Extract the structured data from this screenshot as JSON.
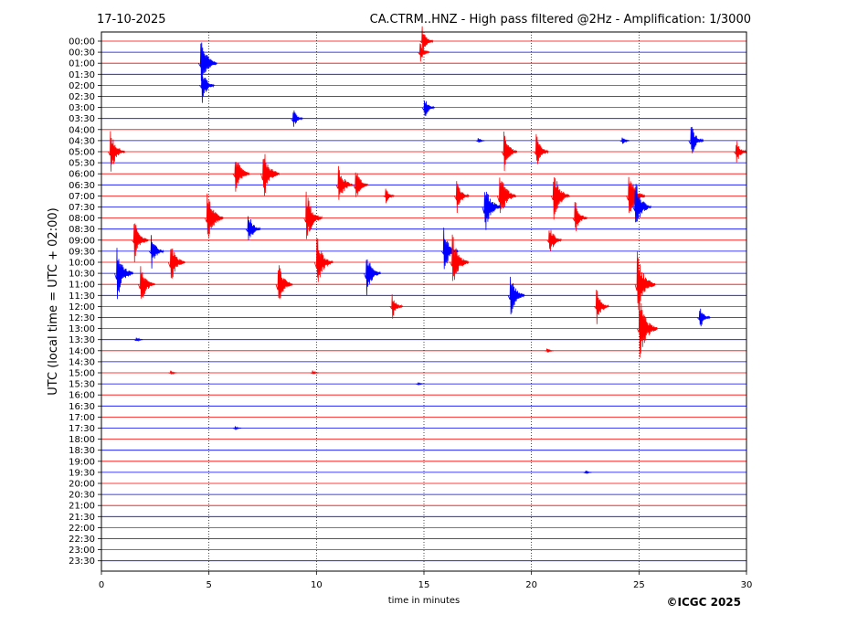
{
  "header": {
    "date": "17-10-2025",
    "title": "CA.CTRM..HNZ - High pass filtered @2Hz - Amplification: 1/3000"
  },
  "footer": {
    "copyright": "©ICGC 2025"
  },
  "chart_data": {
    "type": "line",
    "title": "CA.CTRM..HNZ - High pass filtered @2Hz - Amplification: 1/3000",
    "date": "17-10-2025",
    "xlabel": "time in minutes",
    "ylabel": "UTC (local time = UTC + 02:00)",
    "xlim": [
      0,
      30
    ],
    "x_ticks": [
      "0",
      "5",
      "10",
      "15",
      "20",
      "25",
      "30"
    ],
    "x_tick_values": [
      0,
      5,
      10,
      15,
      20,
      25,
      30
    ],
    "row_labels": [
      "00:00",
      "00:30",
      "01:00",
      "01:30",
      "02:00",
      "02:30",
      "03:00",
      "03:30",
      "04:00",
      "04:30",
      "05:00",
      "05:30",
      "06:00",
      "06:30",
      "07:00",
      "07:30",
      "08:00",
      "08:30",
      "09:00",
      "09:30",
      "10:00",
      "10:30",
      "11:00",
      "11:30",
      "12:00",
      "12:30",
      "13:00",
      "13:30",
      "14:00",
      "14:30",
      "15:00",
      "15:30",
      "16:00",
      "16:30",
      "17:00",
      "17:30",
      "18:00",
      "18:30",
      "19:00",
      "19:30",
      "20:00",
      "20:30",
      "21:00",
      "21:30",
      "22:00",
      "22:30",
      "23:00",
      "23:30"
    ],
    "trace_colors": [
      "#ff0000",
      "#0000ff"
    ],
    "vertical_grid": "dotted",
    "events": [
      {
        "row": 0,
        "t": 14.9,
        "amp": 1.6,
        "color": "#ff0000"
      },
      {
        "row": 1,
        "t": 14.8,
        "amp": 1.2,
        "color": "#ff0000"
      },
      {
        "row": 2,
        "t": 4.6,
        "amp": 3.0,
        "color": "#0000ff"
      },
      {
        "row": 4,
        "t": 4.65,
        "amp": 2.0,
        "color": "#0000ff"
      },
      {
        "row": 6,
        "t": 15.0,
        "amp": 1.4,
        "color": "#0000ff"
      },
      {
        "row": 7,
        "t": 8.9,
        "amp": 1.2,
        "color": "#0000ff"
      },
      {
        "row": 9,
        "t": 17.5,
        "amp": 0.4,
        "color": "#0000ff"
      },
      {
        "row": 9,
        "t": 24.2,
        "amp": 0.6,
        "color": "#0000ff"
      },
      {
        "row": 9,
        "t": 27.4,
        "amp": 2.0,
        "color": "#0000ff"
      },
      {
        "row": 10,
        "t": 0.4,
        "amp": 2.5,
        "color": "#ff0000"
      },
      {
        "row": 10,
        "t": 18.7,
        "amp": 2.2,
        "color": "#ff0000"
      },
      {
        "row": 10,
        "t": 20.2,
        "amp": 2.0,
        "color": "#ff0000"
      },
      {
        "row": 10,
        "t": 29.5,
        "amp": 1.5,
        "color": "#ff0000"
      },
      {
        "row": 12,
        "t": 6.2,
        "amp": 2.5,
        "color": "#ff0000"
      },
      {
        "row": 12,
        "t": 7.5,
        "amp": 3.0,
        "color": "#ff0000"
      },
      {
        "row": 13,
        "t": 11.0,
        "amp": 2.5,
        "color": "#ff0000"
      },
      {
        "row": 13,
        "t": 11.8,
        "amp": 2.0,
        "color": "#ff0000"
      },
      {
        "row": 14,
        "t": 13.2,
        "amp": 1.0,
        "color": "#ff0000"
      },
      {
        "row": 14,
        "t": 16.5,
        "amp": 2.0,
        "color": "#ff0000"
      },
      {
        "row": 14,
        "t": 18.5,
        "amp": 3.0,
        "color": "#ff0000"
      },
      {
        "row": 14,
        "t": 21.0,
        "amp": 3.0,
        "color": "#ff0000"
      },
      {
        "row": 14,
        "t": 24.5,
        "amp": 3.0,
        "color": "#ff0000"
      },
      {
        "row": 15,
        "t": 17.8,
        "amp": 3.0,
        "color": "#0000ff"
      },
      {
        "row": 15,
        "t": 24.8,
        "amp": 3.0,
        "color": "#0000ff"
      },
      {
        "row": 16,
        "t": 4.9,
        "amp": 3.0,
        "color": "#ff0000"
      },
      {
        "row": 16,
        "t": 9.5,
        "amp": 3.0,
        "color": "#ff0000"
      },
      {
        "row": 16,
        "t": 22.0,
        "amp": 2.0,
        "color": "#ff0000"
      },
      {
        "row": 17,
        "t": 6.8,
        "amp": 2.0,
        "color": "#0000ff"
      },
      {
        "row": 18,
        "t": 1.5,
        "amp": 2.5,
        "color": "#ff0000"
      },
      {
        "row": 18,
        "t": 20.8,
        "amp": 2.0,
        "color": "#ff0000"
      },
      {
        "row": 19,
        "t": 2.3,
        "amp": 2.0,
        "color": "#0000ff"
      },
      {
        "row": 19,
        "t": 15.9,
        "amp": 2.5,
        "color": "#0000ff"
      },
      {
        "row": 20,
        "t": 3.2,
        "amp": 2.5,
        "color": "#ff0000"
      },
      {
        "row": 20,
        "t": 10.0,
        "amp": 3.0,
        "color": "#ff0000"
      },
      {
        "row": 20,
        "t": 16.3,
        "amp": 3.0,
        "color": "#ff0000"
      },
      {
        "row": 21,
        "t": 0.7,
        "amp": 3.0,
        "color": "#0000ff"
      },
      {
        "row": 21,
        "t": 12.3,
        "amp": 2.5,
        "color": "#0000ff"
      },
      {
        "row": 22,
        "t": 1.8,
        "amp": 2.5,
        "color": "#ff0000"
      },
      {
        "row": 22,
        "t": 8.2,
        "amp": 2.5,
        "color": "#ff0000"
      },
      {
        "row": 22,
        "t": 24.9,
        "amp": 3.5,
        "color": "#ff0000"
      },
      {
        "row": 23,
        "t": 19.0,
        "amp": 2.5,
        "color": "#0000ff"
      },
      {
        "row": 24,
        "t": 13.5,
        "amp": 1.5,
        "color": "#ff0000"
      },
      {
        "row": 24,
        "t": 23.0,
        "amp": 2.0,
        "color": "#ff0000"
      },
      {
        "row": 25,
        "t": 27.8,
        "amp": 1.5,
        "color": "#0000ff"
      },
      {
        "row": 26,
        "t": 25.0,
        "amp": 3.5,
        "color": "#ff0000"
      },
      {
        "row": 27,
        "t": 1.6,
        "amp": 0.4,
        "color": "#0000ff"
      },
      {
        "row": 28,
        "t": 20.7,
        "amp": 0.4,
        "color": "#ff0000"
      },
      {
        "row": 30,
        "t": 3.2,
        "amp": 0.3,
        "color": "#ff0000"
      },
      {
        "row": 30,
        "t": 9.8,
        "amp": 0.3,
        "color": "#ff0000"
      },
      {
        "row": 31,
        "t": 14.7,
        "amp": 0.2,
        "color": "#0000ff"
      },
      {
        "row": 35,
        "t": 6.2,
        "amp": 0.3,
        "color": "#0000ff"
      },
      {
        "row": 39,
        "t": 22.5,
        "amp": 0.3,
        "color": "#0000ff"
      }
    ]
  }
}
